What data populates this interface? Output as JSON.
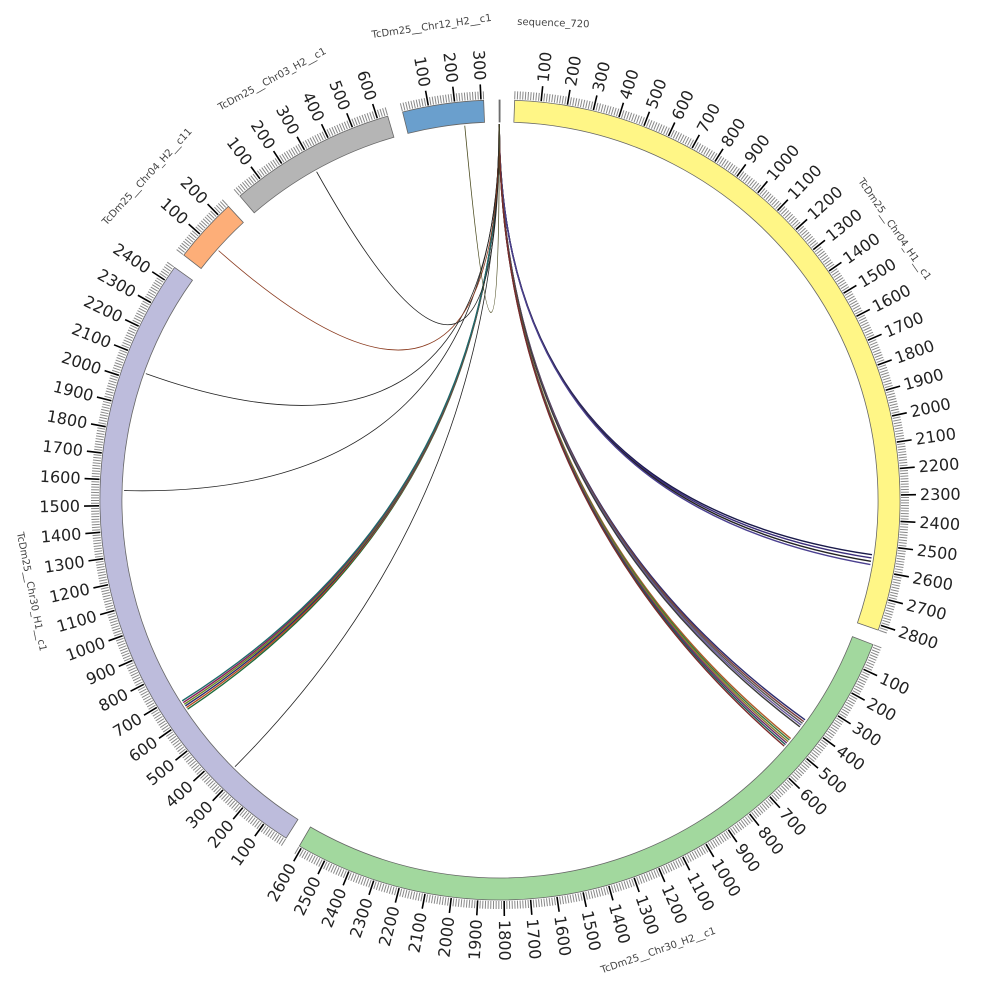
{
  "chart_data": {
    "type": "chord",
    "units": "kb",
    "tick_major_step": 100,
    "tick_minor_step": 10,
    "chromosomes": [
      {
        "name": "TcDm25__Chr04_H1__c1",
        "length": 2820,
        "color": "#fff686"
      },
      {
        "name": "TcDm25__Chr30_H2__c1",
        "length": 2610,
        "color": "#a2d89e"
      },
      {
        "name": "TcDm25__Chr30_H1__c1",
        "length": 2460,
        "color": "#bdbcdc"
      },
      {
        "name": "TcDm25__Chr04_H2__c11",
        "length": 250,
        "color": "#fdae78"
      },
      {
        "name": "TcDm25__Chr03_H2__c1",
        "length": 640,
        "color": "#b5b5b5"
      },
      {
        "name": "TcDm25__Chr12_H2__c1",
        "length": 310,
        "color": "#6a9fcd"
      },
      {
        "name": "sequence_720",
        "length": 0.72,
        "color": "#888888"
      }
    ],
    "links": [
      {
        "from": "sequence_720",
        "from_pos": 0.3,
        "to": "TcDm25__Chr04_H1__c1",
        "to_pos": [
          2540,
          2580
        ],
        "colors": [
          "#1a1a4a",
          "#3b2d7a",
          "#222222",
          "#4a3f8f"
        ]
      },
      {
        "from": "sequence_720",
        "from_pos": 0.4,
        "to": "TcDm25__Chr30_H2__c1",
        "to_pos": [
          385,
          420
        ],
        "colors": [
          "#2c2c6e",
          "#7a3f3f",
          "#555555",
          "#6b5a9e",
          "#3a3a3a"
        ]
      },
      {
        "from": "sequence_720",
        "from_pos": 0.4,
        "to": "TcDm25__Chr30_H2__c1",
        "to_pos": [
          480,
          520
        ],
        "colors": [
          "#b05a2a",
          "#3b7a3b",
          "#8a7a2a",
          "#6a2a6a",
          "#1e5a5a",
          "#7a2a2a"
        ]
      },
      {
        "from": "sequence_720",
        "from_pos": 0.5,
        "to": "TcDm25__Chr30_H1__c1",
        "to_pos": [
          630,
          670
        ],
        "colors": [
          "#1e6b3a",
          "#b84a1e",
          "#2a2a6e",
          "#6b8a1e",
          "#8a1e5a",
          "#1e6b6b"
        ]
      },
      {
        "from": "sequence_720",
        "from_pos": 0.5,
        "to": "TcDm25__Chr30_H1__c1",
        "to_pos": [
          330,
          332
        ],
        "colors": [
          "#222222"
        ]
      },
      {
        "from": "sequence_720",
        "from_pos": 0.5,
        "to": "TcDm25__Chr30_H1__c1",
        "to_pos": [
          1560,
          1562
        ],
        "colors": [
          "#222222"
        ]
      },
      {
        "from": "sequence_720",
        "from_pos": 0.5,
        "to": "TcDm25__Chr30_H1__c1",
        "to_pos": [
          2040,
          2042
        ],
        "colors": [
          "#222222"
        ]
      },
      {
        "from": "sequence_720",
        "from_pos": 0.5,
        "to": "TcDm25__Chr04_H2__c11",
        "to_pos": [
          100,
          102
        ],
        "colors": [
          "#8a3a1e"
        ]
      },
      {
        "from": "sequence_720",
        "from_pos": 0.5,
        "to": "TcDm25__Chr03_H2__c1",
        "to_pos": [
          300,
          302
        ],
        "colors": [
          "#222222"
        ]
      },
      {
        "from": "sequence_720",
        "from_pos": 0.5,
        "to": "TcDm25__Chr12_H2__c1",
        "to_pos": [
          230,
          232
        ],
        "colors": [
          "#4a4a1e"
        ]
      }
    ]
  }
}
